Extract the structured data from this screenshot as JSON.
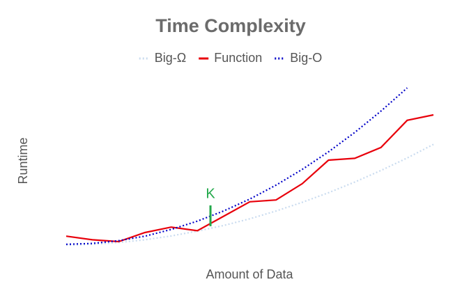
{
  "chart_data": {
    "type": "line",
    "title": "Time Complexity",
    "x_label": "Amount of Data",
    "y_label": "Runtime",
    "x": [
      0,
      1,
      2,
      3,
      4,
      5,
      6,
      7,
      8,
      9,
      10,
      11,
      12,
      13,
      14
    ],
    "xlim": [
      0,
      14
    ],
    "ylim": [
      0,
      100
    ],
    "series": [
      {
        "name": "Big-Ω",
        "color": "#c9dbef",
        "dash": "dotted",
        "values": [
          3,
          3.5,
          4.5,
          6,
          8.1,
          10.8,
          13.9,
          17.6,
          21.9,
          26.7,
          32,
          37.9,
          44.3,
          51.2,
          58.7
        ]
      },
      {
        "name": "Function",
        "color": "#e8000b",
        "dash": "solid",
        "values": [
          8,
          6,
          5,
          10,
          13,
          11,
          19,
          27,
          28,
          37,
          50,
          51,
          57,
          72,
          75
        ]
      },
      {
        "name": "Big-O",
        "color": "#0000c8",
        "dash": "dotted",
        "values": [
          3.5,
          4,
          5.5,
          8,
          11.7,
          16.3,
          21.9,
          28.5,
          36.2,
          44.9,
          54.6,
          65.3,
          77.1,
          89.9,
          null
        ]
      }
    ],
    "annotation": {
      "text": "K",
      "x": 5.5,
      "y0": 13.5,
      "y1": 25,
      "color": "#22a84a"
    },
    "legend": "top"
  }
}
